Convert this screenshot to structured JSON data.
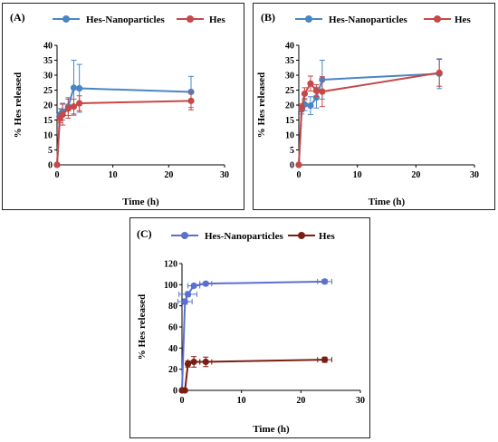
{
  "chart_data": [
    {
      "id": "A",
      "panel_label": "(A)",
      "type": "line",
      "xlabel": "Time (h)",
      "ylabel": "% Hes released",
      "xlim": [
        0,
        30
      ],
      "ylim": [
        0,
        40
      ],
      "xticks": [
        0,
        10,
        20,
        30
      ],
      "yticks": [
        0,
        5,
        10,
        15,
        20,
        25,
        30,
        35,
        40
      ],
      "grid": false,
      "legend": "top",
      "series": [
        {
          "name": "Hes-Nanoparticles",
          "color": "#4a86c4",
          "x": [
            0,
            0.5,
            1,
            2,
            3,
            4,
            24
          ],
          "y": [
            0,
            16.8,
            17.8,
            19.5,
            25.8,
            25.6,
            24.4
          ],
          "err": [
            0,
            2.0,
            2.8,
            3.0,
            9.2,
            8.0,
            5.2
          ]
        },
        {
          "name": "Hes",
          "color": "#c64848",
          "x": [
            0,
            0.5,
            1,
            2,
            3,
            4,
            24
          ],
          "y": [
            0,
            15.6,
            16.8,
            18.8,
            19.5,
            20.6,
            21.4
          ],
          "err": [
            0,
            1.5,
            3.5,
            3.2,
            2.5,
            2.5,
            3.0
          ]
        }
      ]
    },
    {
      "id": "B",
      "panel_label": "(B)",
      "type": "line",
      "xlabel": "Time (h)",
      "ylabel": "% Hes released",
      "xlim": [
        0,
        30
      ],
      "ylim": [
        0,
        40
      ],
      "xticks": [
        0,
        10,
        20,
        30
      ],
      "yticks": [
        0,
        5,
        10,
        15,
        20,
        25,
        30,
        35,
        40
      ],
      "grid": false,
      "legend": "top",
      "series": [
        {
          "name": "Hes-Nanoparticles",
          "color": "#4a86c4",
          "x": [
            0,
            0.5,
            1,
            2,
            3,
            4,
            24
          ],
          "y": [
            0,
            18.5,
            20.2,
            19.8,
            22.5,
            28.5,
            30.5
          ],
          "err": [
            0,
            1.5,
            2.0,
            3.0,
            3.5,
            6.5,
            5.0
          ]
        },
        {
          "name": "Hes",
          "color": "#c64848",
          "x": [
            0,
            0.5,
            1,
            2,
            3,
            4,
            24
          ],
          "y": [
            0,
            19.2,
            23.8,
            27.2,
            24.8,
            24.5,
            30.8
          ],
          "err": [
            0,
            1.2,
            2.0,
            2.5,
            2.0,
            5.0,
            4.5
          ]
        }
      ]
    },
    {
      "id": "C",
      "panel_label": "(C)",
      "type": "line",
      "xlabel": "Time (h)",
      "ylabel": "% Hes released",
      "xlim": [
        0,
        30
      ],
      "ylim": [
        0,
        120
      ],
      "xticks": [
        0,
        10,
        20,
        30
      ],
      "yticks": [
        0,
        20,
        40,
        60,
        80,
        100,
        120
      ],
      "grid": false,
      "legend": "top",
      "series": [
        {
          "name": "Hes-Nanoparticles",
          "color": "#5b6fd0",
          "x": [
            0,
            0.5,
            1,
            2,
            4,
            24
          ],
          "y": [
            0,
            84,
            91,
            99,
            101,
            103
          ],
          "err": [
            0,
            2.5,
            2.5,
            1.5,
            1.5,
            2.0
          ],
          "xerr": [
            0,
            1.2,
            1.5,
            1.0,
            1.0,
            1.2
          ]
        },
        {
          "name": "Hes",
          "color": "#7a1e12",
          "x": [
            0,
            0.5,
            1,
            2,
            4,
            24
          ],
          "y": [
            0,
            0,
            25,
            27,
            27,
            29
          ],
          "err": [
            0,
            0,
            3,
            5,
            4.5,
            2.5
          ],
          "xerr": [
            0,
            0,
            0,
            1.0,
            1.0,
            1.2
          ]
        }
      ]
    }
  ]
}
